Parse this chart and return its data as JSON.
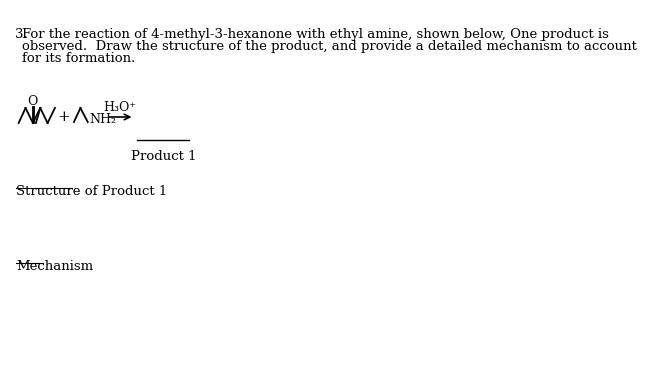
{
  "background_color": "#ffffff",
  "question_number": "3.",
  "question_text_line1": "For the reaction of 4-methyl-3-hexanone with ethyl amine, shown below, One product is",
  "question_text_line2": "observed.  Draw the structure of the product, and provide a detailed mechanism to account",
  "question_text_line3": "for its formation.",
  "reagent_label": "H₃O⁺",
  "product_label": "Product 1",
  "structure_label": "Structure of Product 1",
  "mechanism_label": "Mechanism",
  "text_color": "#000000",
  "font_size_question": 9.5,
  "font_size_labels": 9.5,
  "font_size_underlined": 9.5,
  "nh2_label": "NH₂",
  "plus_sign": "+",
  "o_label": "O"
}
